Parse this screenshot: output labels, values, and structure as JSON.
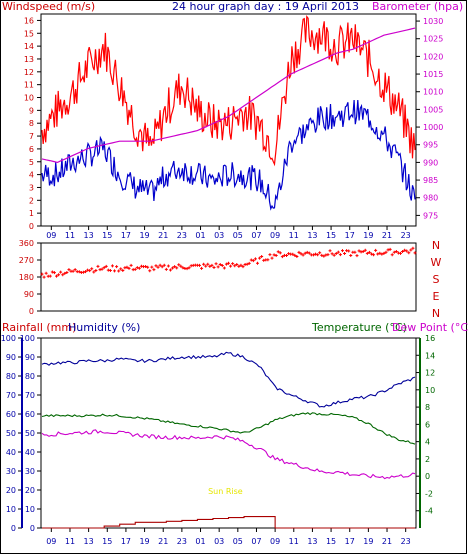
{
  "title": "24 hour graph day : 19 April 2013",
  "colors": {
    "wind": "#ff0000",
    "gust": "#ff0000",
    "avg_wind": "#0000cc",
    "baro": "#cc00cc",
    "dir": "#ff0000",
    "rain": "#aa0000",
    "humidity": "#000099",
    "temperature": "#006600",
    "dewpoint": "#cc00cc",
    "sunrise": "#e6e600",
    "frame": "#000000",
    "axis_blue": "#0000aa",
    "axis_green": "#006600",
    "axis_red": "#cc0000"
  },
  "hour_labels": [
    "09",
    "11",
    "13",
    "15",
    "17",
    "19",
    "21",
    "23",
    "01",
    "03",
    "05",
    "07",
    "09",
    "11",
    "13",
    "15",
    "17",
    "19",
    "21",
    "23"
  ],
  "chart_data": [
    {
      "type": "line",
      "name": "wind-baro",
      "left_label": "Windspeed (m/s)",
      "right_label": "Barometer (hpa)",
      "left_ticks": [
        "0",
        "1",
        "2",
        "3",
        "4",
        "5",
        "6",
        "7",
        "8",
        "9",
        "10",
        "11",
        "12",
        "13",
        "14",
        "15",
        "16"
      ],
      "right_ticks": [
        "975",
        "980",
        "985",
        "990",
        "995",
        "1000",
        "1005",
        "1010",
        "1015",
        "1020",
        "1025",
        "1030"
      ],
      "ylim_left": [
        0,
        16.5
      ],
      "ylim_right": [
        972,
        1032
      ],
      "x_hours": [
        0,
        1,
        2,
        3,
        4,
        5,
        6,
        7,
        8,
        9,
        10,
        11,
        12,
        13,
        14,
        15,
        16,
        17,
        18,
        19,
        20,
        21,
        22,
        23,
        24
      ],
      "series": [
        {
          "key": "gust",
          "values": [
            7.5,
            9,
            10.5,
            12.5,
            14,
            11,
            8,
            6,
            9,
            11,
            9,
            8,
            8,
            9,
            8,
            6,
            13,
            15,
            15,
            14,
            14.5,
            13,
            11,
            9,
            6
          ]
        },
        {
          "key": "avg_wind",
          "values": [
            4,
            4,
            5,
            5.5,
            6,
            4,
            3,
            2.5,
            4,
            4.5,
            4,
            3.5,
            4,
            4,
            3.5,
            1.5,
            6.5,
            7.5,
            8.5,
            8.5,
            9,
            8.5,
            7,
            5,
            2
          ]
        },
        {
          "key": "baro",
          "values": [
            991,
            990,
            992,
            994,
            995,
            996,
            996,
            996,
            997,
            998,
            999,
            1001,
            1003,
            1006,
            1009,
            1012,
            1015,
            1017,
            1019,
            1021,
            1022,
            1024,
            1026,
            1027,
            1028
          ]
        }
      ]
    },
    {
      "type": "scatter",
      "name": "wind-direction",
      "right_compass": [
        "N",
        "W",
        "S",
        "E",
        "N"
      ],
      "left_ticks": [
        "360",
        "270",
        "180",
        "90",
        "0"
      ],
      "ylim": [
        0,
        360
      ],
      "x_hours": [
        0,
        1,
        2,
        3,
        4,
        5,
        6,
        7,
        8,
        9,
        10,
        11,
        12,
        13,
        14,
        15,
        16,
        17,
        18,
        19,
        20,
        21,
        22,
        23,
        24
      ],
      "values": [
        190,
        200,
        210,
        220,
        225,
        225,
        230,
        225,
        230,
        235,
        235,
        240,
        240,
        245,
        270,
        300,
        300,
        305,
        305,
        305,
        305,
        310,
        310,
        315,
        320
      ]
    },
    {
      "type": "line",
      "name": "temp-humidity-rain",
      "label_rainfall": "Rainfall (mm)",
      "label_humidity": "Humidity (%)",
      "label_temperature": "Temperature (°C)",
      "label_dewpoint": "Dew Point (°C)",
      "label_sunrise": "Sun Rise",
      "rain_ticks": [
        "0",
        "10",
        "20",
        "30",
        "40",
        "50",
        "60",
        "70",
        "80",
        "90",
        "100"
      ],
      "humidity_ticks": [
        "0",
        "10",
        "20",
        "30",
        "40",
        "50",
        "60",
        "70",
        "80",
        "90",
        "100"
      ],
      "temp_ticks": [
        "-4",
        "-2",
        "0",
        "2",
        "4",
        "6",
        "8",
        "10",
        "12",
        "14",
        "16"
      ],
      "ylim_left": [
        0,
        100
      ],
      "ylim_temp": [
        -6,
        16
      ],
      "x_hours": [
        0,
        1,
        2,
        3,
        4,
        5,
        6,
        7,
        8,
        9,
        10,
        11,
        12,
        13,
        14,
        15,
        16,
        17,
        18,
        19,
        20,
        21,
        22,
        23,
        24
      ],
      "series": [
        {
          "key": "humidity",
          "values": [
            86,
            87,
            87,
            88,
            88,
            89,
            88,
            88,
            89,
            90,
            90,
            90,
            92,
            90,
            85,
            74,
            70,
            67,
            64,
            66,
            68,
            69,
            72,
            76,
            79
          ]
        },
        {
          "key": "temperature",
          "values": [
            7.0,
            7.0,
            7.0,
            7.0,
            7.1,
            7.0,
            6.8,
            6.6,
            6.3,
            6.0,
            5.8,
            5.6,
            5.3,
            5.0,
            5.6,
            6.5,
            7.0,
            7.3,
            7.2,
            7.1,
            6.8,
            6.1,
            5.0,
            4.2,
            3.8
          ]
        },
        {
          "key": "dewpoint",
          "values": [
            4.8,
            4.9,
            5.0,
            5.1,
            5.2,
            5.0,
            4.8,
            4.6,
            4.5,
            4.5,
            4.4,
            4.6,
            4.5,
            4.0,
            3.2,
            2.0,
            1.5,
            1.0,
            0.5,
            0.5,
            0.2,
            0.0,
            -0.1,
            0.0,
            0.2
          ]
        },
        {
          "key": "rain",
          "values": [
            0,
            0,
            0,
            0,
            1,
            2,
            3,
            3,
            3.5,
            4,
            4.5,
            5,
            5.5,
            6,
            6,
            0,
            0,
            0,
            0,
            0,
            0,
            0,
            0,
            0,
            0
          ]
        }
      ]
    }
  ]
}
